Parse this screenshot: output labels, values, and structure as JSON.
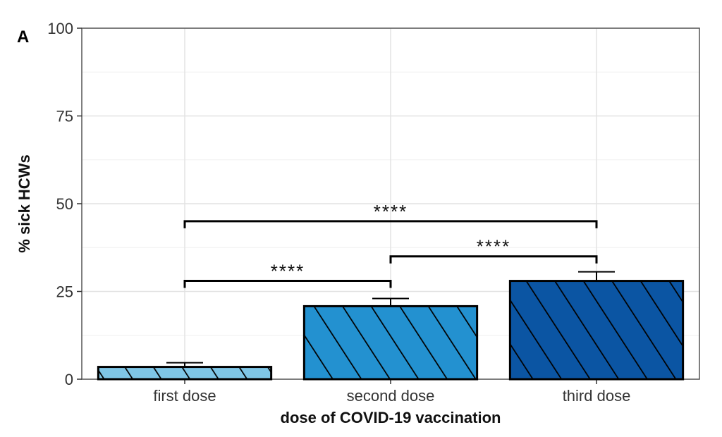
{
  "panel_label": "A",
  "chart_data": {
    "type": "bar",
    "categories": [
      "first dose",
      "second dose",
      "third dose"
    ],
    "values": [
      3.5,
      20.8,
      28.0
    ],
    "error_upper": [
      4.7,
      23.0,
      30.6
    ],
    "colors": [
      "#7fc6e6",
      "#2391d0",
      "#0b55a3"
    ],
    "xlabel": "dose of COVID-19 vaccination",
    "ylabel": "% sick HCWs",
    "ylim": [
      0,
      100
    ],
    "yticks": [
      "0",
      "25",
      "50",
      "75",
      "100"
    ],
    "ytick_values": [
      0,
      25,
      50,
      75,
      100
    ],
    "grid": true,
    "significance": [
      {
        "from": "first dose",
        "to": "second dose",
        "label": "****",
        "y": 28
      },
      {
        "from": "second dose",
        "to": "third dose",
        "label": "****",
        "y": 35
      },
      {
        "from": "first dose",
        "to": "third dose",
        "label": "****",
        "y": 45
      }
    ]
  }
}
